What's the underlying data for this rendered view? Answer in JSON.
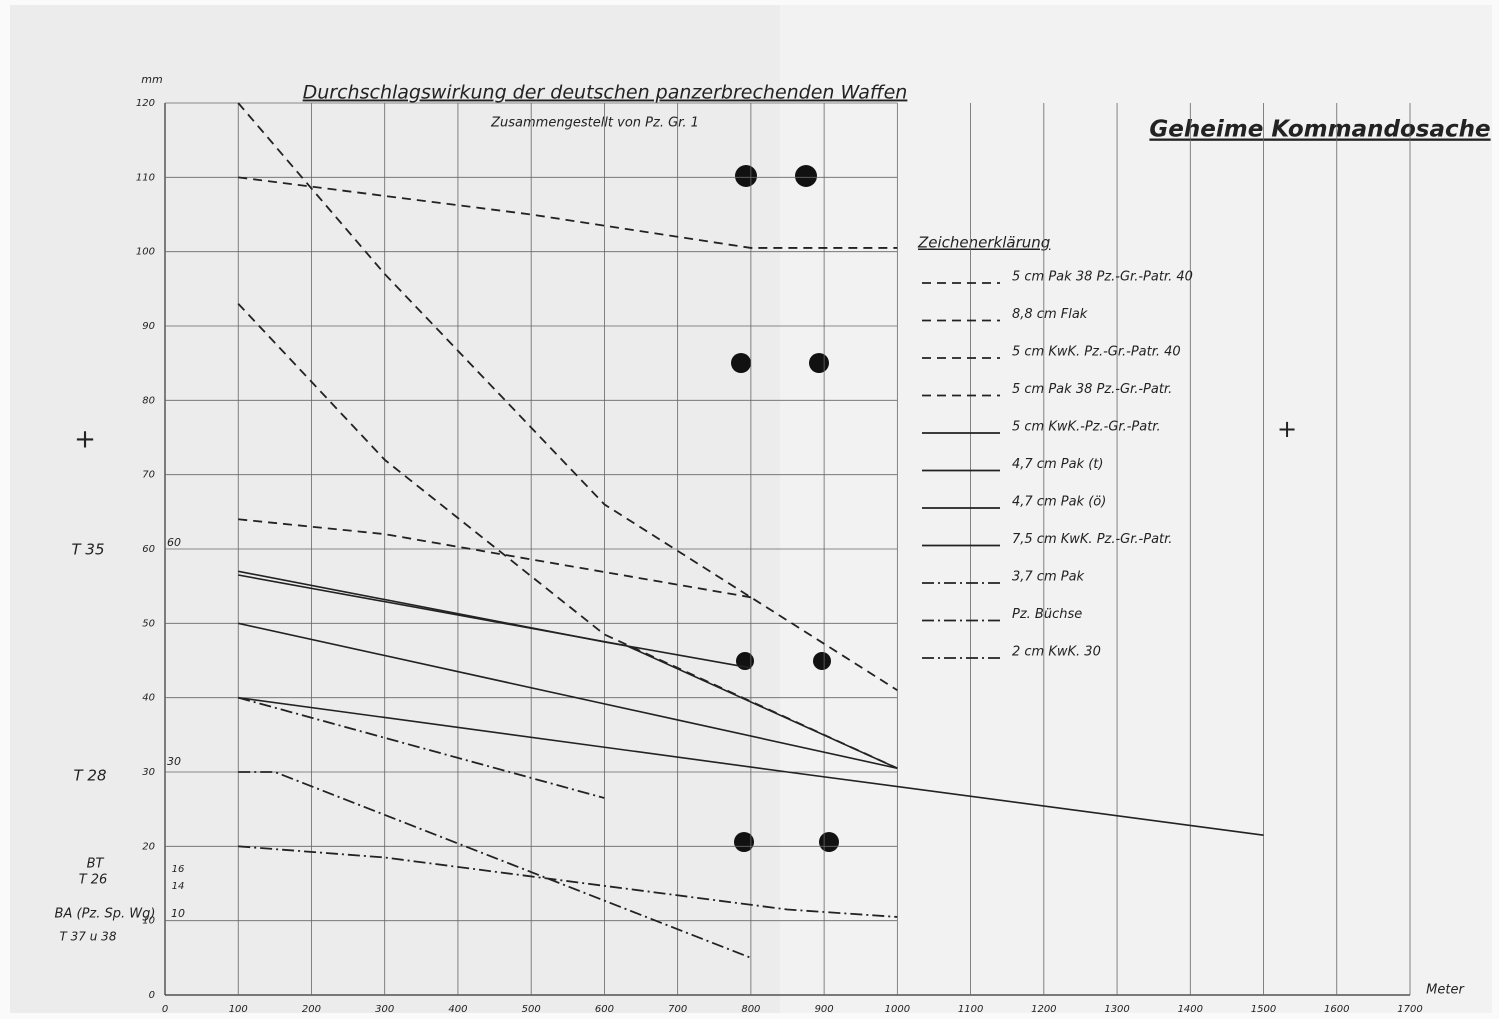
{
  "chart_data": {
    "type": "line",
    "title": "Durchschlagswirkung der deutschen panzerbrechenden Waffen",
    "subtitle": "Zusammengestellt von Pz. Gr. 1",
    "stamp": "Geheime Kommandosache",
    "y_label": "mm",
    "x_label": "Meter",
    "legend_title": "Zeichenerklärung",
    "annotations": [
      "T 35",
      "60",
      "T 28",
      "30",
      "BT",
      "T 26",
      "16",
      "14",
      "BA (Pz. Sp. Wg)",
      "T 37 u 38",
      "10"
    ],
    "xlim": [
      0,
      1700
    ],
    "ylim": [
      0,
      120
    ],
    "xticks": [
      0,
      100,
      200,
      300,
      400,
      500,
      600,
      700,
      800,
      900,
      1000,
      1100,
      1200,
      1300,
      1400,
      1500,
      1600,
      1700
    ],
    "yticks": [
      0,
      10,
      20,
      30,
      40,
      50,
      60,
      70,
      80,
      90,
      100,
      110,
      120
    ],
    "grid": true,
    "legend": "right",
    "series": [
      {
        "name": "5 cm Pak 38 Pz.-Gr.-Patr. 40",
        "color": "#222",
        "style": "dashed",
        "x": [
          100,
          300,
          600,
          1000
        ],
        "values": [
          120,
          97,
          66,
          41
        ]
      },
      {
        "name": "8,8 cm Flak",
        "color": "#222",
        "style": "dashed",
        "x": [
          100,
          300,
          500,
          800,
          1000
        ],
        "values": [
          110,
          107.5,
          105,
          100.5,
          100.5
        ]
      },
      {
        "name": "5 cm KwK. Pz.-Gr.-Patr. 40",
        "color": "#222",
        "style": "dashed",
        "x": [
          100,
          300,
          600,
          1000
        ],
        "values": [
          93,
          72,
          48.5,
          30.5
        ]
      },
      {
        "name": "5 cm Pak 38 Pz.-Gr.-Patr.",
        "color": "#222",
        "style": "dashed",
        "x": [
          100,
          300,
          800
        ],
        "values": [
          64,
          62,
          53.5
        ]
      },
      {
        "name": "5 cm KwK.-Pz.-Gr.-Patr.",
        "color": "#222",
        "style": "solid",
        "x": [
          100,
          600,
          800
        ],
        "values": [
          57,
          47.5,
          44
        ]
      },
      {
        "name": "4,7 cm Pak (t)",
        "color": "#222",
        "style": "solid",
        "x": [
          100,
          630,
          1000
        ],
        "values": [
          56.5,
          47,
          30.5
        ]
      },
      {
        "name": "4,7 cm Pak (ö)",
        "color": "#222",
        "style": "solid",
        "x": [
          100,
          700,
          1000
        ],
        "values": [
          50,
          37,
          30.5
        ]
      },
      {
        "name": "7,5 cm KwK. Pz.-Gr.-Patr.",
        "color": "#222",
        "style": "solid",
        "x": [
          100,
          850,
          1500
        ],
        "values": [
          40,
          30,
          21.5
        ]
      },
      {
        "name": "3,7 cm Pak",
        "color": "#222",
        "style": "dashdot",
        "x": [
          100,
          600
        ],
        "values": [
          40,
          26.5
        ]
      },
      {
        "name": "Pz. Büchse",
        "color": "#222",
        "style": "dashdot",
        "x": [
          100,
          150,
          800
        ],
        "values": [
          30,
          30,
          5
        ]
      },
      {
        "name": "2 cm KwK. 30",
        "color": "#222",
        "style": "dashdot",
        "x": [
          100,
          300,
          850,
          1000
        ],
        "values": [
          20,
          18.5,
          11.5,
          10.5
        ]
      }
    ]
  }
}
